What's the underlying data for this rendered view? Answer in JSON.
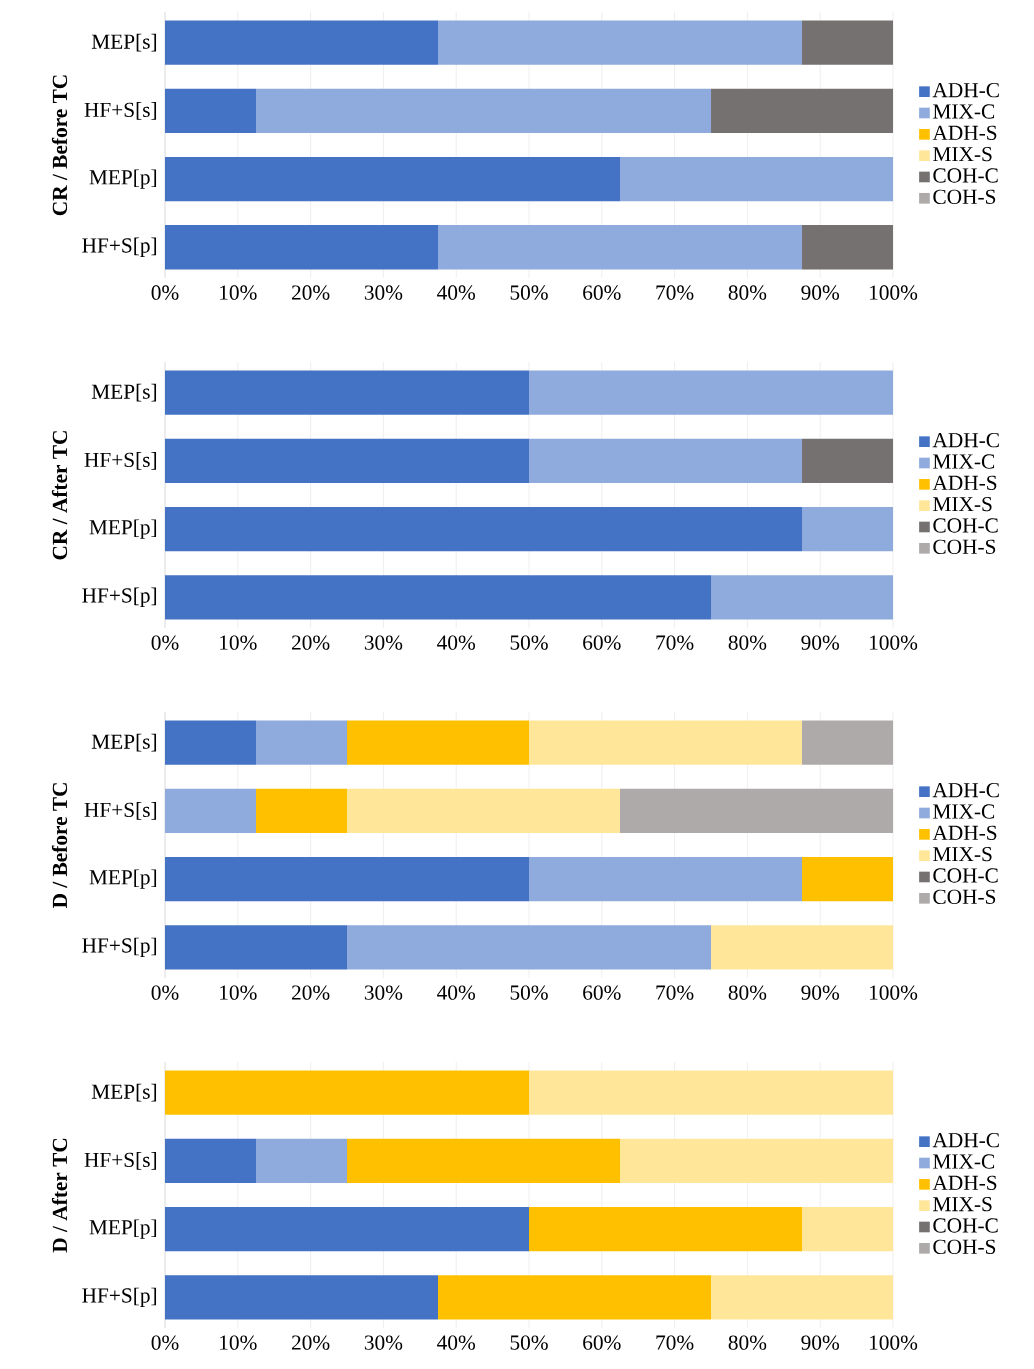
{
  "chart_data": [
    {
      "type": "bar",
      "orientation": "horizontal",
      "stacked": true,
      "ylabel": "CR / Before TC",
      "categories": [
        "MEP[s]",
        "HF+S[s]",
        "MEP[p]",
        "HF+S[p]"
      ],
      "series": [
        {
          "name": "ADH-C",
          "color": "#4472c4",
          "values": [
            37.5,
            12.5,
            62.5,
            37.5
          ]
        },
        {
          "name": "MIX-C",
          "color": "#8faadc",
          "values": [
            50,
            62.5,
            37.5,
            50
          ]
        },
        {
          "name": "ADH-S",
          "color": "#ffc000",
          "values": [
            0,
            0,
            0,
            0
          ]
        },
        {
          "name": "MIX-S",
          "color": "#ffe699",
          "values": [
            0,
            0,
            0,
            0
          ]
        },
        {
          "name": "COH-C",
          "color": "#767171",
          "values": [
            12.5,
            25,
            0,
            12.5
          ]
        },
        {
          "name": "COH-S",
          "color": "#aeaaaa",
          "values": [
            0,
            0,
            0,
            0
          ]
        }
      ],
      "xlim": [
        0,
        100
      ],
      "xticks": [
        {
          "value": 0,
          "label": "0%"
        },
        {
          "value": 10,
          "label": "10%"
        },
        {
          "value": 20,
          "label": "20%"
        },
        {
          "value": 30,
          "label": "30%"
        },
        {
          "value": 40,
          "label": "40%"
        },
        {
          "value": 50,
          "label": "50%"
        },
        {
          "value": 60,
          "label": "60%"
        },
        {
          "value": 70,
          "label": "70%"
        },
        {
          "value": 80,
          "label": "80%"
        },
        {
          "value": 90,
          "label": "90%"
        },
        {
          "value": 100,
          "label": "100%"
        }
      ],
      "legend": "right",
      "grid": "x"
    },
    {
      "type": "bar",
      "orientation": "horizontal",
      "stacked": true,
      "ylabel": "CR / After TC",
      "categories": [
        "MEP[s]",
        "HF+S[s]",
        "MEP[p]",
        "HF+S[p]"
      ],
      "series": [
        {
          "name": "ADH-C",
          "color": "#4472c4",
          "values": [
            50,
            50,
            87.5,
            75
          ]
        },
        {
          "name": "MIX-C",
          "color": "#8faadc",
          "values": [
            50,
            37.5,
            12.5,
            25
          ]
        },
        {
          "name": "ADH-S",
          "color": "#ffc000",
          "values": [
            0,
            0,
            0,
            0
          ]
        },
        {
          "name": "MIX-S",
          "color": "#ffe699",
          "values": [
            0,
            0,
            0,
            0
          ]
        },
        {
          "name": "COH-C",
          "color": "#767171",
          "values": [
            0,
            12.5,
            0,
            0
          ]
        },
        {
          "name": "COH-S",
          "color": "#aeaaaa",
          "values": [
            0,
            0,
            0,
            0
          ]
        }
      ],
      "xlim": [
        0,
        100
      ],
      "xticks": [
        {
          "value": 0,
          "label": "0%"
        },
        {
          "value": 10,
          "label": "10%"
        },
        {
          "value": 20,
          "label": "20%"
        },
        {
          "value": 30,
          "label": "30%"
        },
        {
          "value": 40,
          "label": "40%"
        },
        {
          "value": 50,
          "label": "50%"
        },
        {
          "value": 60,
          "label": "60%"
        },
        {
          "value": 70,
          "label": "70%"
        },
        {
          "value": 80,
          "label": "80%"
        },
        {
          "value": 90,
          "label": "90%"
        },
        {
          "value": 100,
          "label": "100%"
        }
      ],
      "legend": "right",
      "grid": "x"
    },
    {
      "type": "bar",
      "orientation": "horizontal",
      "stacked": true,
      "ylabel": "D / Before TC",
      "categories": [
        "MEP[s]",
        "HF+S[s]",
        "MEP[p]",
        "HF+S[p]"
      ],
      "series": [
        {
          "name": "ADH-C",
          "color": "#4472c4",
          "values": [
            12.5,
            0,
            50,
            25
          ]
        },
        {
          "name": "MIX-C",
          "color": "#8faadc",
          "values": [
            12.5,
            12.5,
            37.5,
            50
          ]
        },
        {
          "name": "ADH-S",
          "color": "#ffc000",
          "values": [
            25,
            12.5,
            12.5,
            0
          ]
        },
        {
          "name": "MIX-S",
          "color": "#ffe699",
          "values": [
            37.5,
            37.5,
            0,
            25
          ]
        },
        {
          "name": "COH-C",
          "color": "#767171",
          "values": [
            0,
            0,
            0,
            0
          ]
        },
        {
          "name": "COH-S",
          "color": "#aeaaaa",
          "values": [
            12.5,
            37.5,
            0,
            0
          ]
        }
      ],
      "xlim": [
        0,
        100
      ],
      "xticks": [
        {
          "value": 0,
          "label": "0%"
        },
        {
          "value": 10,
          "label": "10%"
        },
        {
          "value": 20,
          "label": "20%"
        },
        {
          "value": 30,
          "label": "30%"
        },
        {
          "value": 40,
          "label": "40%"
        },
        {
          "value": 50,
          "label": "50%"
        },
        {
          "value": 60,
          "label": "60%"
        },
        {
          "value": 70,
          "label": "70%"
        },
        {
          "value": 80,
          "label": "80%"
        },
        {
          "value": 90,
          "label": "90%"
        },
        {
          "value": 100,
          "label": "100%"
        }
      ],
      "legend": "right",
      "grid": "x"
    },
    {
      "type": "bar",
      "orientation": "horizontal",
      "stacked": true,
      "ylabel": "D / After TC",
      "categories": [
        "MEP[s]",
        "HF+S[s]",
        "MEP[p]",
        "HF+S[p]"
      ],
      "series": [
        {
          "name": "ADH-C",
          "color": "#4472c4",
          "values": [
            0,
            12.5,
            50,
            37.5
          ]
        },
        {
          "name": "MIX-C",
          "color": "#8faadc",
          "values": [
            0,
            12.5,
            0,
            0
          ]
        },
        {
          "name": "ADH-S",
          "color": "#ffc000",
          "values": [
            50,
            37.5,
            37.5,
            37.5
          ]
        },
        {
          "name": "MIX-S",
          "color": "#ffe699",
          "values": [
            50,
            37.5,
            12.5,
            25
          ]
        },
        {
          "name": "COH-C",
          "color": "#767171",
          "values": [
            0,
            0,
            0,
            0
          ]
        },
        {
          "name": "COH-S",
          "color": "#aeaaaa",
          "values": [
            0,
            0,
            0,
            0
          ]
        }
      ],
      "xlim": [
        0,
        100
      ],
      "xticks": [
        {
          "value": 0,
          "label": "0%"
        },
        {
          "value": 10,
          "label": "10%"
        },
        {
          "value": 20,
          "label": "20%"
        },
        {
          "value": 30,
          "label": "30%"
        },
        {
          "value": 40,
          "label": "40%"
        },
        {
          "value": 50,
          "label": "50%"
        },
        {
          "value": 60,
          "label": "60%"
        },
        {
          "value": 70,
          "label": "70%"
        },
        {
          "value": 80,
          "label": "80%"
        },
        {
          "value": 90,
          "label": "90%"
        },
        {
          "value": 100,
          "label": "100%"
        }
      ],
      "legend": "right",
      "grid": "x"
    }
  ]
}
